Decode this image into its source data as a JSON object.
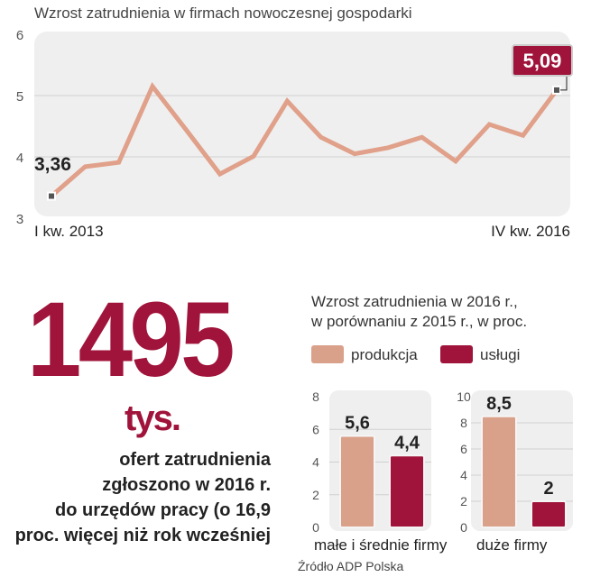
{
  "chart_data": [
    {
      "type": "line",
      "title": "Wzrost zatrudnienia w firmach nowoczesnej gospodarki",
      "ylim": [
        3,
        6
      ],
      "yticks": [
        3,
        4,
        5,
        6
      ],
      "x_start_label": "I kw. 2013",
      "x_end_label": "IV kw. 2016",
      "start_label": "3,36",
      "end_label": "5,09",
      "grid": true,
      "values": [
        3.36,
        3.84,
        3.91,
        5.15,
        4.44,
        3.72,
        4.01,
        4.91,
        4.32,
        4.05,
        4.15,
        4.32,
        3.93,
        4.53,
        4.35,
        5.09
      ],
      "color": "#e0a089",
      "highlight": "#a0133a"
    },
    {
      "type": "bar",
      "title": "Wzrost zatrudnienia w 2016 r., w porównaniu z 2015 r., w proc.",
      "legend": [
        {
          "name": "produkcja",
          "color": "#d9a08a"
        },
        {
          "name": "usługi",
          "color": "#a0133a"
        }
      ],
      "groups": [
        {
          "category": "małe i średnie firmy",
          "ylim": [
            0,
            8
          ],
          "yticks": [
            0,
            2,
            4,
            6,
            8
          ],
          "values": [
            5.6,
            4.4
          ],
          "labels": [
            "5,6",
            "4,4"
          ]
        },
        {
          "category": "duże firmy",
          "ylim": [
            0,
            10
          ],
          "yticks": [
            0,
            2,
            4,
            6,
            8,
            10
          ],
          "values": [
            8.5,
            2
          ],
          "labels": [
            "8,5",
            "2"
          ]
        }
      ]
    }
  ],
  "headline": {
    "number": "1495",
    "unit": "tys.",
    "lines": [
      "ofert zatrudnienia",
      "zgłoszono w 2016 r.",
      "do urzędów pracy (o 16,9",
      "proc. więcej niż rok wcześniej"
    ]
  },
  "source": "Źródło ADP Polska"
}
